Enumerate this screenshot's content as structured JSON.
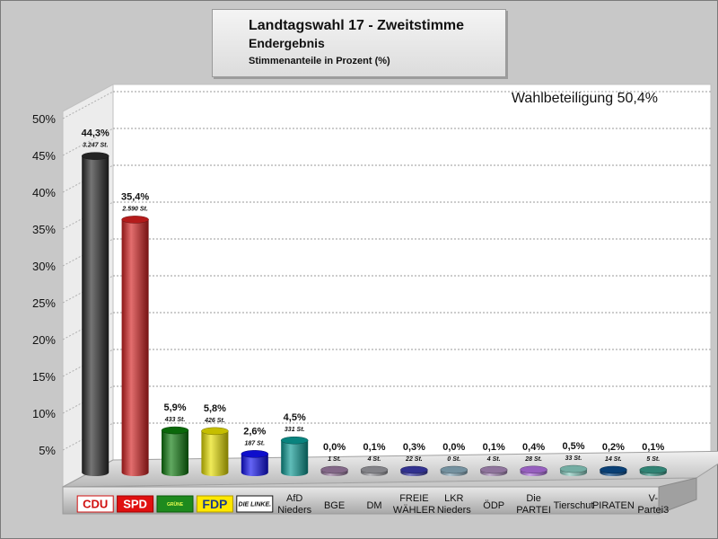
{
  "header": {
    "title": "Landtagswahl 17 - Zweitstimme",
    "subtitle": "Endergebnis",
    "caption": "Stimmenanteile in Prozent (%)"
  },
  "turnout": "Wahlbeteiligung 50,4%",
  "chart_data": {
    "type": "bar",
    "title": "Landtagswahl 17 - Zweitstimme",
    "subtitle": "Endergebnis",
    "ylabel": "",
    "xlabel": "",
    "ylim": [
      0,
      50
    ],
    "yticks": [
      5,
      10,
      15,
      20,
      25,
      30,
      35,
      40,
      45,
      50
    ],
    "ytick_labels": [
      "5%",
      "10%",
      "15%",
      "20%",
      "25%",
      "30%",
      "35%",
      "40%",
      "45%",
      "50%"
    ],
    "grid": true,
    "categories": [
      "CDU",
      "SPD",
      "GRÜNE",
      "FDP",
      "DIE LINKE.",
      "AfD Nieders",
      "BGE",
      "DM",
      "FREIE WÄHLER",
      "LKR Nieders",
      "ÖDP",
      "Die PARTEI",
      "Tierschut",
      "PIRATEN",
      "V-Partei3"
    ],
    "category_lines": [
      [
        "CDU"
      ],
      [
        "SPD"
      ],
      [
        "GRÜNE"
      ],
      [
        "FDP"
      ],
      [
        "DIE LINKE."
      ],
      [
        "AfD",
        "Nieders"
      ],
      [
        "BGE"
      ],
      [
        "DM"
      ],
      [
        "FREIE",
        "WÄHLER"
      ],
      [
        "LKR",
        "Nieders"
      ],
      [
        "ÖDP"
      ],
      [
        "Die",
        "PARTEI"
      ],
      [
        "Tierschut"
      ],
      [
        "PIRATEN"
      ],
      [
        "V-",
        "Partei3"
      ]
    ],
    "logo_categories": [
      "CDU",
      "SPD",
      "GRÜNE",
      "FDP",
      "DIE LINKE."
    ],
    "values": [
      44.3,
      35.4,
      5.9,
      5.8,
      2.6,
      4.5,
      0.0,
      0.1,
      0.3,
      0.0,
      0.1,
      0.4,
      0.5,
      0.2,
      0.1
    ],
    "value_labels": [
      "44,3%",
      "35,4%",
      "5,9%",
      "5,8%",
      "2,6%",
      "4,5%",
      "0,0%",
      "0,1%",
      "0,3%",
      "0,0%",
      "0,1%",
      "0,4%",
      "0,5%",
      "0,2%",
      "0,1%"
    ],
    "votes": [
      "3.247 St.",
      "2.590 St.",
      "433 St.",
      "426 St.",
      "187 St.",
      "331 St.",
      "1 St.",
      "4 St.",
      "22 St.",
      "0 St.",
      "4 St.",
      "28 St.",
      "33 St.",
      "14 St.",
      "5 St."
    ],
    "colors": [
      "#2a2a2a",
      "#d42020",
      "#0c7a0c",
      "#e8e000",
      "#1010f0",
      "#0a9a94",
      "#9a7aa0",
      "#9a9aa0",
      "#3a3aa8",
      "#88aabb",
      "#a888b8",
      "#b070e0",
      "#88ccc0",
      "#0a4a8a",
      "#3a9a88"
    ]
  }
}
